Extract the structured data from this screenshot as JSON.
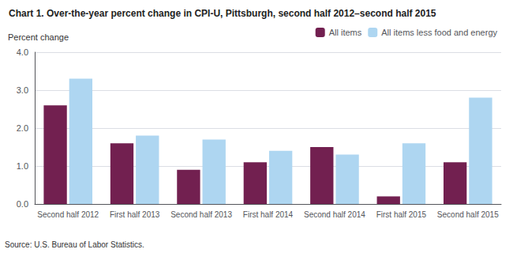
{
  "chart_data": {
    "type": "bar",
    "title": "Chart 1. Over-the-year percent change in CPI-U, Pittsburgh, second half 2012–second half 2015",
    "ylabel": "Percent change",
    "source": "Source: U.S. Bureau of Labor Statistics.",
    "categories": [
      "Second half 2012",
      "First half 2013",
      "Second half 2013",
      "First half 2014",
      "Second half 2014",
      "First half 2015",
      "Second half 2015"
    ],
    "series": [
      {
        "name": "All items",
        "color": "#722050",
        "values": [
          2.6,
          1.6,
          0.9,
          1.1,
          1.5,
          0.2,
          1.1
        ]
      },
      {
        "name": "All items less food and energy",
        "color": "#aed6f1",
        "values": [
          3.3,
          1.8,
          1.7,
          1.4,
          1.3,
          1.6,
          2.8
        ]
      }
    ],
    "ylim": [
      0,
      4.0
    ],
    "yticks": [
      {
        "value": 0,
        "label": "0.0"
      },
      {
        "value": 1,
        "label": "1.0"
      },
      {
        "value": 2,
        "label": "2.0"
      },
      {
        "value": 3,
        "label": "3.0"
      },
      {
        "value": 4,
        "label": "4.0"
      }
    ],
    "grid": true,
    "legend": "upper right"
  }
}
